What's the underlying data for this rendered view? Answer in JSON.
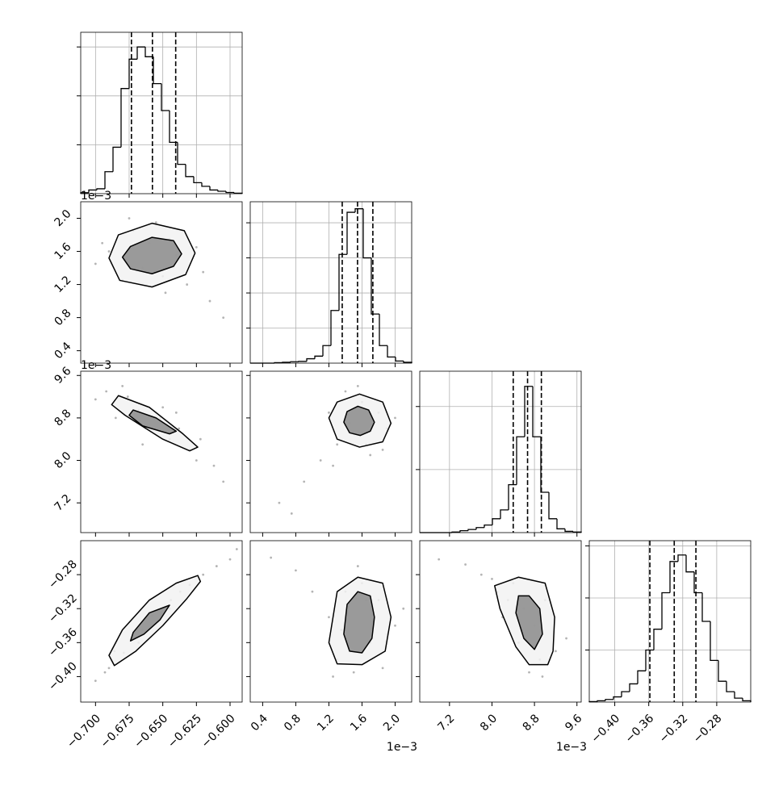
{
  "chart_data": {
    "type": "corner",
    "params": [
      {
        "lim": [
          -0.711,
          -0.591
        ],
        "ticks": [
          {
            "value": -0.7,
            "label": "−0.700"
          },
          {
            "value": -0.675,
            "label": "−0.675"
          },
          {
            "value": -0.65,
            "label": "−0.650"
          },
          {
            "value": -0.625,
            "label": "−0.625"
          },
          {
            "value": -0.6,
            "label": "−0.600"
          }
        ],
        "quantiles": [
          -0.6733,
          -0.6577,
          -0.6404
        ],
        "hist": {
          "bins": [
            -0.711,
            -0.705,
            -0.699,
            -0.693,
            -0.687,
            -0.681,
            -0.675,
            -0.669,
            -0.663,
            -0.657,
            -0.651,
            -0.645,
            -0.639,
            -0.633,
            -0.627,
            -0.621,
            -0.615,
            -0.609,
            -0.603,
            -0.597,
            -0.591
          ],
          "counts": [
            4,
            15,
            20,
            90,
            190,
            430,
            550,
            600,
            560,
            450,
            340,
            210,
            120,
            70,
            45,
            30,
            15,
            10,
            5,
            2
          ],
          "ylim": [
            0,
            660
          ],
          "yticks": [
            200,
            400,
            600
          ]
        }
      },
      {
        "lim": [
          0.25,
          2.2
        ],
        "offset": "1e−3",
        "ticks": [
          0.4,
          0.8,
          1.2,
          1.6,
          {
            "value": 2.0,
            "label": "2.0"
          }
        ],
        "quantiles": [
          1.361,
          1.546,
          1.731
        ],
        "hist": {
          "bins": [
            0.25,
            0.3475,
            0.445,
            0.5425,
            0.64,
            0.7375,
            0.835,
            0.9325,
            1.03,
            1.1275,
            1.225,
            1.3225,
            1.42,
            1.5175,
            1.615,
            1.7125,
            1.81,
            1.9075,
            2.005,
            2.1025,
            2.2
          ],
          "counts": [
            0,
            0,
            0,
            3,
            5,
            8,
            10,
            25,
            40,
            100,
            300,
            620,
            860,
            880,
            600,
            280,
            100,
            35,
            12,
            5
          ],
          "ylim": [
            0,
            920
          ],
          "yticks": [
            200,
            400,
            600,
            800
          ]
        }
      },
      {
        "lim": [
          6.64,
          9.68
        ],
        "offset": "1e−3",
        "ticks": [
          7.2,
          {
            "value": 8.0,
            "label": "8.0"
          },
          8.8,
          9.6
        ],
        "quantiles": [
          8.4,
          8.67,
          8.93
        ],
        "hist": {
          "bins": [
            6.64,
            6.792,
            6.944,
            7.096,
            7.248,
            7.4,
            7.552,
            7.704,
            7.856,
            8.008,
            8.16,
            8.312,
            8.464,
            8.616,
            8.768,
            8.92,
            9.072,
            9.224,
            9.376,
            9.528,
            9.68
          ],
          "counts": [
            0,
            0,
            0,
            0,
            5,
            15,
            25,
            40,
            60,
            110,
            180,
            380,
            760,
            1160,
            760,
            320,
            110,
            30,
            10,
            5
          ],
          "ylim": [
            0,
            1280
          ],
          "yticks": [
            500,
            1000
          ]
        }
      },
      {
        "lim": [
          -0.43,
          -0.24
        ],
        "ticks": [
          {
            "value": -0.4,
            "label": "−0.40"
          },
          {
            "value": -0.36,
            "label": "−0.36"
          },
          {
            "value": -0.32,
            "label": "−0.32"
          },
          {
            "value": -0.28,
            "label": "−0.28"
          }
        ],
        "quantiles": [
          -0.3587,
          -0.33,
          -0.3045
        ],
        "hist": {
          "bins": [
            -0.43,
            -0.4205,
            -0.411,
            -0.4015,
            -0.392,
            -0.3825,
            -0.373,
            -0.3635,
            -0.354,
            -0.3445,
            -0.335,
            -0.3255,
            -0.316,
            -0.3065,
            -0.297,
            -0.2875,
            -0.278,
            -0.2685,
            -0.259,
            -0.2495,
            -0.24
          ],
          "counts": [
            2,
            5,
            10,
            20,
            40,
            70,
            120,
            200,
            280,
            420,
            540,
            565,
            500,
            420,
            310,
            160,
            80,
            40,
            15,
            5
          ],
          "ylim": [
            0,
            620
          ],
          "yticks": [
            200,
            400,
            600
          ]
        }
      }
    ],
    "panels": [
      {
        "x": [
          -0.7,
          -0.69,
          -0.68,
          -0.672,
          -0.665,
          -0.66,
          -0.655,
          -0.65,
          -0.645,
          -0.64,
          -0.632,
          -0.625,
          -0.615,
          -0.605,
          -0.675,
          -0.648,
          -0.62,
          -0.695
        ],
        "y": [
          1.45,
          1.6,
          1.25,
          1.85,
          1.4,
          1.7,
          1.95,
          1.3,
          1.75,
          1.55,
          1.2,
          1.65,
          1.0,
          0.8,
          2.0,
          1.1,
          1.35,
          1.7
        ],
        "contours": [
          {
            "x": [
              -0.626,
              -0.634,
              -0.658,
              -0.683,
              -0.69,
              -0.682,
              -0.658,
              -0.633
            ],
            "y": [
              1.58,
              1.85,
              1.94,
              1.8,
              1.52,
              1.25,
              1.17,
              1.32
            ]
          },
          {
            "x": [
              -0.636,
              -0.642,
              -0.658,
              -0.674,
              -0.68,
              -0.674,
              -0.658,
              -0.642
            ],
            "y": [
              1.57,
              1.73,
              1.77,
              1.66,
              1.53,
              1.39,
              1.33,
              1.42
            ]
          }
        ]
      },
      {
        "x": [
          -0.7,
          -0.692,
          -0.685,
          -0.676,
          -0.668,
          -0.66,
          -0.652,
          -0.645,
          -0.638,
          -0.63,
          -0.622,
          -0.612,
          -0.605,
          -0.68,
          -0.65,
          -0.625,
          -0.64,
          -0.665
        ],
        "y": [
          9.15,
          9.3,
          8.8,
          9.2,
          8.95,
          8.6,
          8.8,
          8.4,
          8.6,
          8.2,
          8.4,
          7.9,
          7.6,
          9.4,
          9.0,
          8.0,
          8.9,
          8.3
        ],
        "contours": [
          {
            "x": [
              -0.624,
              -0.635,
              -0.66,
              -0.683,
              -0.688,
              -0.678,
              -0.65,
              -0.63
            ],
            "y": [
              8.25,
              8.5,
              9.0,
              9.22,
              9.05,
              8.85,
              8.4,
              8.18
            ]
          },
          {
            "x": [
              -0.64,
              -0.655,
              -0.672,
              -0.675,
              -0.665,
              -0.645
            ],
            "y": [
              8.55,
              8.8,
              8.95,
              8.85,
              8.65,
              8.5
            ]
          }
        ]
      },
      {
        "x": [
          0.6,
          0.9,
          1.1,
          1.2,
          1.3,
          1.4,
          1.5,
          1.6,
          1.7,
          1.8,
          1.9,
          2.0,
          1.25,
          1.55,
          1.85,
          0.75,
          1.45,
          1.65
        ],
        "y": [
          7.2,
          7.6,
          8.0,
          8.9,
          8.3,
          9.3,
          8.5,
          9.1,
          8.1,
          8.9,
          8.6,
          8.8,
          7.9,
          9.4,
          8.2,
          7.0,
          8.7,
          8.3
        ],
        "contours": [
          {
            "x": [
              1.95,
              1.85,
              1.57,
              1.3,
              1.2,
              1.3,
              1.57,
              1.85
            ],
            "y": [
              8.7,
              9.1,
              9.25,
              9.1,
              8.8,
              8.4,
              8.25,
              8.35
            ]
          },
          {
            "x": [
              1.75,
              1.68,
              1.55,
              1.42,
              1.38,
              1.45,
              1.58,
              1.7
            ],
            "y": [
              8.72,
              8.95,
              9.02,
              8.92,
              8.72,
              8.52,
              8.47,
              8.55
            ]
          }
        ]
      },
      {
        "x": [
          -0.7,
          -0.693,
          -0.686,
          -0.679,
          -0.672,
          -0.665,
          -0.658,
          -0.651,
          -0.644,
          -0.637,
          -0.63,
          -0.62,
          -0.61,
          -0.6,
          -0.595,
          -0.668,
          -0.645,
          -0.69
        ],
        "y": [
          -0.405,
          -0.395,
          -0.37,
          -0.372,
          -0.35,
          -0.345,
          -0.328,
          -0.325,
          -0.31,
          -0.3,
          -0.292,
          -0.28,
          -0.27,
          -0.262,
          -0.25,
          -0.36,
          -0.32,
          -0.39
        ],
        "contours": [
          {
            "x": [
              -0.624,
              -0.64,
              -0.66,
              -0.68,
              -0.69,
              -0.686,
              -0.67,
              -0.65,
              -0.632,
              -0.622
            ],
            "y": [
              -0.281,
              -0.29,
              -0.31,
              -0.345,
              -0.375,
              -0.387,
              -0.37,
              -0.34,
              -0.308,
              -0.288
            ]
          },
          {
            "x": [
              -0.645,
              -0.66,
              -0.672,
              -0.674,
              -0.664,
              -0.652
            ],
            "y": [
              -0.316,
              -0.325,
              -0.348,
              -0.358,
              -0.35,
              -0.333
            ]
          }
        ]
      },
      {
        "x": [
          0.5,
          0.8,
          1.0,
          1.2,
          1.3,
          1.4,
          1.5,
          1.6,
          1.7,
          1.8,
          1.9,
          2.0,
          2.1,
          1.25,
          1.55,
          1.85,
          1.35,
          1.65
        ],
        "y": [
          -0.26,
          -0.275,
          -0.3,
          -0.33,
          -0.38,
          -0.3,
          -0.395,
          -0.29,
          -0.36,
          -0.31,
          -0.35,
          -0.34,
          -0.32,
          -0.4,
          -0.27,
          -0.39,
          -0.345,
          -0.31
        ],
        "contours": [
          {
            "x": [
              1.95,
              1.85,
              1.55,
              1.3,
              1.2,
              1.3,
              1.6,
              1.88
            ],
            "y": [
              -0.33,
              -0.29,
              -0.283,
              -0.3,
              -0.36,
              -0.385,
              -0.386,
              -0.37
            ]
          },
          {
            "x": [
              1.75,
              1.7,
              1.55,
              1.42,
              1.38,
              1.45,
              1.6,
              1.72
            ],
            "y": [
              -0.33,
              -0.305,
              -0.3,
              -0.315,
              -0.35,
              -0.37,
              -0.372,
              -0.355
            ]
          }
        ]
      },
      {
        "x": [
          7.0,
          7.5,
          7.8,
          8.0,
          8.1,
          8.2,
          8.4,
          8.5,
          8.6,
          8.7,
          8.8,
          8.9,
          9.0,
          9.2,
          9.4,
          8.3,
          8.95,
          8.55
        ],
        "y": [
          -0.262,
          -0.268,
          -0.28,
          -0.285,
          -0.3,
          -0.33,
          -0.29,
          -0.36,
          -0.32,
          -0.395,
          -0.34,
          -0.38,
          -0.31,
          -0.37,
          -0.355,
          -0.31,
          -0.4,
          -0.345
        ],
        "contours": [
          {
            "x": [
              9.15,
              9.18,
              9.0,
              8.5,
              8.05,
              8.15,
              8.45,
              8.7,
              9.05
            ],
            "y": [
              -0.37,
              -0.33,
              -0.29,
              -0.283,
              -0.293,
              -0.32,
              -0.365,
              -0.386,
              -0.386
            ]
          },
          {
            "x": [
              8.95,
              8.9,
              8.7,
              8.5,
              8.45,
              8.6,
              8.8
            ],
            "y": [
              -0.35,
              -0.32,
              -0.305,
              -0.305,
              -0.325,
              -0.355,
              -0.368
            ]
          }
        ]
      }
    ]
  }
}
